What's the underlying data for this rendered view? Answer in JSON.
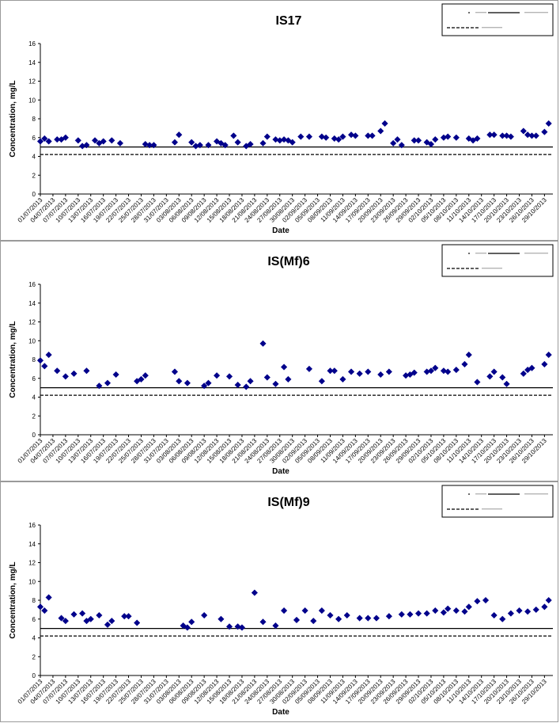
{
  "chart_data": [
    {
      "type": "scatter",
      "title": "IS17",
      "xlabel": "Date",
      "ylabel": "Concentration, mg/L",
      "ylim": [
        0,
        16
      ],
      "yticks": [
        0,
        2,
        4,
        6,
        8,
        10,
        12,
        14,
        16
      ],
      "xlim": [
        "2013-07-01",
        "2013-10-31"
      ],
      "x_tick_labels": [
        "01/07/2013",
        "04/07/2013",
        "07/07/2013",
        "10/07/2013",
        "13/07/2013",
        "16/07/2013",
        "19/07/2013",
        "22/07/2013",
        "25/07/2013",
        "28/07/2013",
        "31/07/2013",
        "03/08/2013",
        "06/08/2013",
        "09/08/2013",
        "12/08/2013",
        "15/08/2013",
        "18/08/2013",
        "21/08/2013",
        "24/08/2013",
        "27/08/2013",
        "30/08/2013",
        "02/09/2013",
        "05/09/2013",
        "08/09/2013",
        "11/09/2013",
        "14/09/2013",
        "17/09/2013",
        "20/09/2013",
        "23/09/2013",
        "26/09/2013",
        "29/09/2013",
        "02/10/2013",
        "05/10/2013",
        "08/10/2013",
        "11/10/2013",
        "14/10/2013",
        "17/10/2013",
        "20/10/2013",
        "23/10/2013",
        "26/10/2013",
        "29/10/2013"
      ],
      "series": [
        {
          "color": "#00008b",
          "marker": "diamond",
          "x": [
            "2013-07-01",
            "2013-07-02",
            "2013-07-03",
            "2013-07-05",
            "2013-07-06",
            "2013-07-07",
            "2013-07-10",
            "2013-07-11",
            "2013-07-12",
            "2013-07-14",
            "2013-07-15",
            "2013-07-16",
            "2013-07-18",
            "2013-07-20",
            "2013-07-26",
            "2013-07-27",
            "2013-07-28",
            "2013-08-02",
            "2013-08-03",
            "2013-08-06",
            "2013-08-07",
            "2013-08-08",
            "2013-08-10",
            "2013-08-12",
            "2013-08-13",
            "2013-08-14",
            "2013-08-16",
            "2013-08-17",
            "2013-08-19",
            "2013-08-20",
            "2013-08-23",
            "2013-08-24",
            "2013-08-26",
            "2013-08-27",
            "2013-08-28",
            "2013-08-29",
            "2013-08-30",
            "2013-09-01",
            "2013-09-03",
            "2013-09-06",
            "2013-09-07",
            "2013-09-09",
            "2013-09-10",
            "2013-09-11",
            "2013-09-13",
            "2013-09-14",
            "2013-09-17",
            "2013-09-18",
            "2013-09-20",
            "2013-09-21",
            "2013-09-23",
            "2013-09-24",
            "2013-09-25",
            "2013-09-28",
            "2013-09-29",
            "2013-10-01",
            "2013-10-02",
            "2013-10-03",
            "2013-10-05",
            "2013-10-06",
            "2013-10-08",
            "2013-10-11",
            "2013-10-12",
            "2013-10-13",
            "2013-10-16",
            "2013-10-17",
            "2013-10-19",
            "2013-10-20",
            "2013-10-21",
            "2013-10-24",
            "2013-10-25",
            "2013-10-26",
            "2013-10-27",
            "2013-10-29",
            "2013-10-30"
          ],
          "y": [
            5.6,
            5.9,
            5.6,
            5.8,
            5.8,
            6.0,
            5.7,
            5.1,
            5.2,
            5.7,
            5.4,
            5.6,
            5.7,
            5.4,
            5.3,
            5.2,
            5.2,
            5.5,
            6.3,
            5.5,
            5.1,
            5.2,
            5.2,
            5.6,
            5.4,
            5.2,
            6.2,
            5.5,
            5.1,
            5.3,
            5.4,
            6.1,
            5.8,
            5.7,
            5.8,
            5.7,
            5.5,
            6.1,
            6.1,
            6.1,
            6.0,
            5.9,
            5.8,
            6.1,
            6.3,
            6.2,
            6.2,
            6.2,
            6.7,
            7.5,
            5.4,
            5.8,
            5.2,
            5.7,
            5.7,
            5.5,
            5.3,
            5.8,
            6.0,
            6.1,
            6.0,
            5.9,
            5.7,
            5.9,
            6.3,
            6.3,
            6.2,
            6.2,
            6.1,
            6.7,
            6.3,
            6.2,
            6.2,
            6.6,
            7.5
          ]
        }
      ],
      "reference_lines": [
        {
          "y": 5.0,
          "style": "solid",
          "color": "#000000"
        },
        {
          "y": 4.2,
          "style": "dashed",
          "color": "#000000"
        }
      ],
      "legend_placement": "top-right",
      "grid": false
    },
    {
      "type": "scatter",
      "title": "IS(Mf)6",
      "xlabel": "Date",
      "ylabel": "Concentration, mg/L",
      "ylim": [
        0,
        16
      ],
      "yticks": [
        0,
        2,
        4,
        6,
        8,
        10,
        12,
        14,
        16
      ],
      "xlim": [
        "2013-07-01",
        "2013-10-31"
      ],
      "x_tick_labels": [
        "01/07/2013",
        "04/07/2013",
        "07/07/2013",
        "10/07/2013",
        "13/07/2013",
        "16/07/2013",
        "19/07/2013",
        "22/07/2013",
        "25/07/2013",
        "28/07/2013",
        "31/07/2013",
        "03/08/2013",
        "06/08/2013",
        "09/08/2013",
        "12/08/2013",
        "15/08/2013",
        "18/08/2013",
        "21/08/2013",
        "24/08/2013",
        "27/08/2013",
        "30/08/2013",
        "02/09/2013",
        "05/09/2013",
        "08/09/2013",
        "11/09/2013",
        "14/09/2013",
        "17/09/2013",
        "20/09/2013",
        "23/09/2013",
        "26/09/2013",
        "29/09/2013",
        "02/10/2013",
        "05/10/2013",
        "08/10/2013",
        "11/10/2013",
        "14/10/2013",
        "17/10/2013",
        "20/10/2013",
        "23/10/2013",
        "26/10/2013",
        "29/10/2013"
      ],
      "series": [
        {
          "color": "#00008b",
          "marker": "diamond",
          "x": [
            "2013-07-01",
            "2013-07-02",
            "2013-07-03",
            "2013-07-05",
            "2013-07-07",
            "2013-07-09",
            "2013-07-12",
            "2013-07-15",
            "2013-07-17",
            "2013-07-19",
            "2013-07-24",
            "2013-07-25",
            "2013-07-26",
            "2013-08-02",
            "2013-08-03",
            "2013-08-05",
            "2013-08-09",
            "2013-08-10",
            "2013-08-12",
            "2013-08-15",
            "2013-08-17",
            "2013-08-19",
            "2013-08-20",
            "2013-08-23",
            "2013-08-24",
            "2013-08-26",
            "2013-08-28",
            "2013-08-29",
            "2013-09-03",
            "2013-09-06",
            "2013-09-08",
            "2013-09-09",
            "2013-09-11",
            "2013-09-13",
            "2013-09-15",
            "2013-09-17",
            "2013-09-20",
            "2013-09-22",
            "2013-09-26",
            "2013-09-27",
            "2013-09-28",
            "2013-10-01",
            "2013-10-02",
            "2013-10-03",
            "2013-10-05",
            "2013-10-06",
            "2013-10-08",
            "2013-10-10",
            "2013-10-11",
            "2013-10-13",
            "2013-10-16",
            "2013-10-17",
            "2013-10-19",
            "2013-10-20",
            "2013-10-24",
            "2013-10-25",
            "2013-10-26",
            "2013-10-29",
            "2013-10-30"
          ],
          "y": [
            7.9,
            7.3,
            8.5,
            6.8,
            6.2,
            6.5,
            6.8,
            5.2,
            5.5,
            6.4,
            5.7,
            5.9,
            6.3,
            6.7,
            5.7,
            5.5,
            5.2,
            5.5,
            6.3,
            6.2,
            5.3,
            5.1,
            5.7,
            9.7,
            6.1,
            5.4,
            7.2,
            5.9,
            7.0,
            5.7,
            6.8,
            6.8,
            5.9,
            6.7,
            6.5,
            6.7,
            6.4,
            6.7,
            6.3,
            6.4,
            6.6,
            6.7,
            6.8,
            7.1,
            6.8,
            6.7,
            6.9,
            7.5,
            8.5,
            5.6,
            6.2,
            6.7,
            6.1,
            5.4,
            6.5,
            6.9,
            7.1,
            7.5,
            8.5
          ]
        }
      ],
      "reference_lines": [
        {
          "y": 5.0,
          "style": "solid",
          "color": "#000000"
        },
        {
          "y": 4.2,
          "style": "dashed",
          "color": "#000000"
        }
      ],
      "legend_placement": "top-right",
      "grid": false
    },
    {
      "type": "scatter",
      "title": "IS(Mf)9",
      "xlabel": "Date",
      "ylabel": "Concentration, mg/L",
      "ylim": [
        0,
        16
      ],
      "yticks": [
        0,
        2,
        4,
        6,
        8,
        10,
        12,
        14,
        16
      ],
      "xlim": [
        "2013-07-01",
        "2013-10-31"
      ],
      "x_tick_labels": [
        "01/07/2013",
        "04/07/2013",
        "07/07/2013",
        "10/07/2013",
        "13/07/2013",
        "16/07/2013",
        "19/07/2013",
        "22/07/2013",
        "25/07/2013",
        "28/07/2013",
        "31/07/2013",
        "03/08/2013",
        "06/08/2013",
        "09/08/2013",
        "12/08/2013",
        "15/08/2013",
        "18/08/2013",
        "21/08/2013",
        "24/08/2013",
        "27/08/2013",
        "30/08/2013",
        "02/09/2013",
        "05/09/2013",
        "08/09/2013",
        "11/09/2013",
        "14/09/2013",
        "17/09/2013",
        "20/09/2013",
        "23/09/2013",
        "26/09/2013",
        "29/09/2013",
        "02/10/2013",
        "05/10/2013",
        "08/10/2013",
        "11/10/2013",
        "14/10/2013",
        "17/10/2013",
        "20/10/2013",
        "23/10/2013",
        "26/10/2013",
        "29/10/2013"
      ],
      "series": [
        {
          "color": "#00008b",
          "marker": "diamond",
          "x": [
            "2013-07-01",
            "2013-07-02",
            "2013-07-03",
            "2013-07-06",
            "2013-07-07",
            "2013-07-09",
            "2013-07-11",
            "2013-07-12",
            "2013-07-13",
            "2013-07-15",
            "2013-07-17",
            "2013-07-18",
            "2013-07-21",
            "2013-07-22",
            "2013-07-24",
            "2013-08-04",
            "2013-08-05",
            "2013-08-06",
            "2013-08-09",
            "2013-08-13",
            "2013-08-15",
            "2013-08-17",
            "2013-08-18",
            "2013-08-21",
            "2013-08-23",
            "2013-08-26",
            "2013-08-28",
            "2013-08-31",
            "2013-09-02",
            "2013-09-04",
            "2013-09-06",
            "2013-09-08",
            "2013-09-10",
            "2013-09-12",
            "2013-09-15",
            "2013-09-17",
            "2013-09-19",
            "2013-09-22",
            "2013-09-25",
            "2013-09-27",
            "2013-09-29",
            "2013-10-01",
            "2013-10-03",
            "2013-10-05",
            "2013-10-06",
            "2013-10-08",
            "2013-10-10",
            "2013-10-11",
            "2013-10-13",
            "2013-10-15",
            "2013-10-17",
            "2013-10-19",
            "2013-10-21",
            "2013-10-23",
            "2013-10-25",
            "2013-10-27",
            "2013-10-29",
            "2013-10-30"
          ],
          "y": [
            7.3,
            6.9,
            8.3,
            6.1,
            5.8,
            6.5,
            6.6,
            5.8,
            6.0,
            6.4,
            5.4,
            5.8,
            6.3,
            6.3,
            5.6,
            5.3,
            5.1,
            5.7,
            6.4,
            6.0,
            5.2,
            5.2,
            5.1,
            8.8,
            5.7,
            5.3,
            6.9,
            5.9,
            6.9,
            5.8,
            6.9,
            6.4,
            6.0,
            6.4,
            6.1,
            6.1,
            6.1,
            6.3,
            6.5,
            6.5,
            6.6,
            6.6,
            6.9,
            6.7,
            7.1,
            6.9,
            6.8,
            7.3,
            7.9,
            8.0,
            6.4,
            6.0,
            6.6,
            6.9,
            6.8,
            7.0,
            7.3,
            8.0
          ]
        }
      ],
      "reference_lines": [
        {
          "y": 5.0,
          "style": "solid",
          "color": "#000000"
        },
        {
          "y": 4.2,
          "style": "dashed",
          "color": "#000000"
        }
      ],
      "legend_placement": "top-right",
      "grid": false
    }
  ]
}
